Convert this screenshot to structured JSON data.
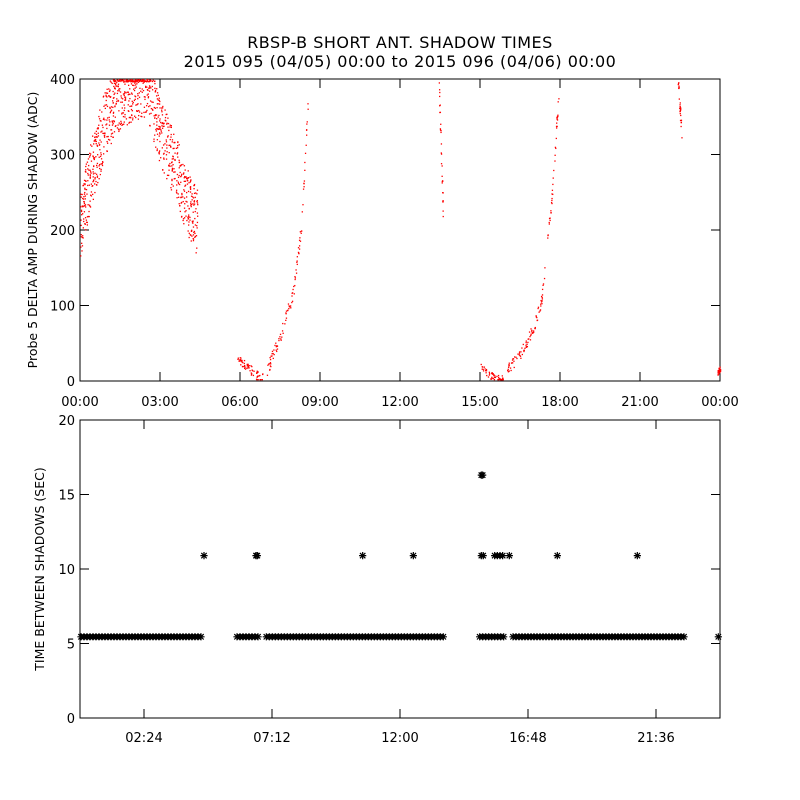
{
  "header": {
    "title": "RBSP-B SHORT ANT. SHADOW TIMES",
    "subtitle": "2015 095 (04/05) 00:00 to 2015 096 (04/06) 00:00"
  },
  "colors": {
    "amp_points": "#ff0000",
    "interval_points": "#000000"
  },
  "chart_data": [
    {
      "type": "scatter",
      "ylabel": "Probe 5 DELTA AMP DURING SHADOW (ADC)",
      "xlabel": "",
      "xlim": [
        0,
        24
      ],
      "ylim": [
        0,
        400
      ],
      "x_unit": "hours",
      "xticks": [
        "00:00",
        "03:00",
        "06:00",
        "09:00",
        "12:00",
        "15:00",
        "18:00",
        "21:00",
        "00:00"
      ],
      "yticks": [
        "0",
        "100",
        "200",
        "300",
        "400"
      ],
      "series": [
        {
          "color": "#ff0000",
          "segments": [
            {
              "x": [
                0.0,
                0.5,
                1.0,
                1.5,
                2.0,
                2.5,
                3.0,
                3.5,
                4.0,
                4.4
              ],
              "y": [
                210,
                290,
                350,
                380,
                390,
                395,
                330,
                290,
                240,
                210
              ],
              "spread": 45
            },
            {
              "x": [
                5.9,
                6.3,
                6.6,
                6.85
              ],
              "y": [
                30,
                18,
                8,
                6
              ],
              "spread": 6
            },
            {
              "x": [
                7.0,
                7.5,
                8.0,
                8.3,
                8.55
              ],
              "y": [
                15,
                60,
                120,
                210,
                380
              ],
              "spread": 8
            },
            {
              "x": [
                13.45,
                13.6
              ],
              "y": [
                390,
                230
              ],
              "spread": 15
            },
            {
              "x": [
                15.0,
                15.3,
                15.6,
                15.85
              ],
              "y": [
                20,
                8,
                5,
                4
              ],
              "spread": 5
            },
            {
              "x": [
                16.0,
                16.5,
                17.0,
                17.3,
                17.7,
                17.95
              ],
              "y": [
                15,
                35,
                70,
                110,
                250,
                390
              ],
              "spread": 8
            },
            {
              "x": [
                22.4,
                22.55
              ],
              "y": [
                400,
                330
              ],
              "spread": 10
            },
            {
              "x": [
                23.9,
                24.0
              ],
              "y": [
                12,
                18
              ],
              "spread": 4
            }
          ]
        }
      ]
    },
    {
      "type": "scatter",
      "ylabel": "TIME BETWEEN SHADOWS (SEC)",
      "xlabel": "",
      "xlim": [
        0,
        24
      ],
      "ylim": [
        0,
        20
      ],
      "x_unit": "hours",
      "xticks": [
        "02:24",
        "07:12",
        "12:00",
        "16:48",
        "21:36"
      ],
      "xtick_values": [
        2.4,
        7.2,
        12.0,
        16.8,
        21.6
      ],
      "yticks": [
        "0",
        "5",
        "10",
        "15",
        "20"
      ],
      "series": [
        {
          "color": "#000000",
          "baseline_value": 5.45,
          "baseline_ranges": [
            [
              0.0,
              4.65
            ],
            [
              5.85,
              6.75
            ],
            [
              6.95,
              13.75
            ],
            [
              14.95,
              15.95
            ],
            [
              16.2,
              22.7
            ],
            [
              23.9,
              24.0
            ]
          ],
          "points": [
            {
              "x": 4.65,
              "y": 10.9
            },
            {
              "x": 6.6,
              "y": 10.9
            },
            {
              "x": 6.65,
              "y": 10.9
            },
            {
              "x": 10.6,
              "y": 10.9
            },
            {
              "x": 12.5,
              "y": 10.9
            },
            {
              "x": 15.05,
              "y": 16.3
            },
            {
              "x": 15.1,
              "y": 16.3
            },
            {
              "x": 15.05,
              "y": 10.9
            },
            {
              "x": 15.12,
              "y": 10.9
            },
            {
              "x": 15.55,
              "y": 10.9
            },
            {
              "x": 15.65,
              "y": 10.9
            },
            {
              "x": 15.75,
              "y": 10.9
            },
            {
              "x": 15.85,
              "y": 10.9
            },
            {
              "x": 16.1,
              "y": 10.9
            },
            {
              "x": 17.9,
              "y": 10.9
            },
            {
              "x": 20.9,
              "y": 10.9
            }
          ]
        }
      ]
    }
  ]
}
